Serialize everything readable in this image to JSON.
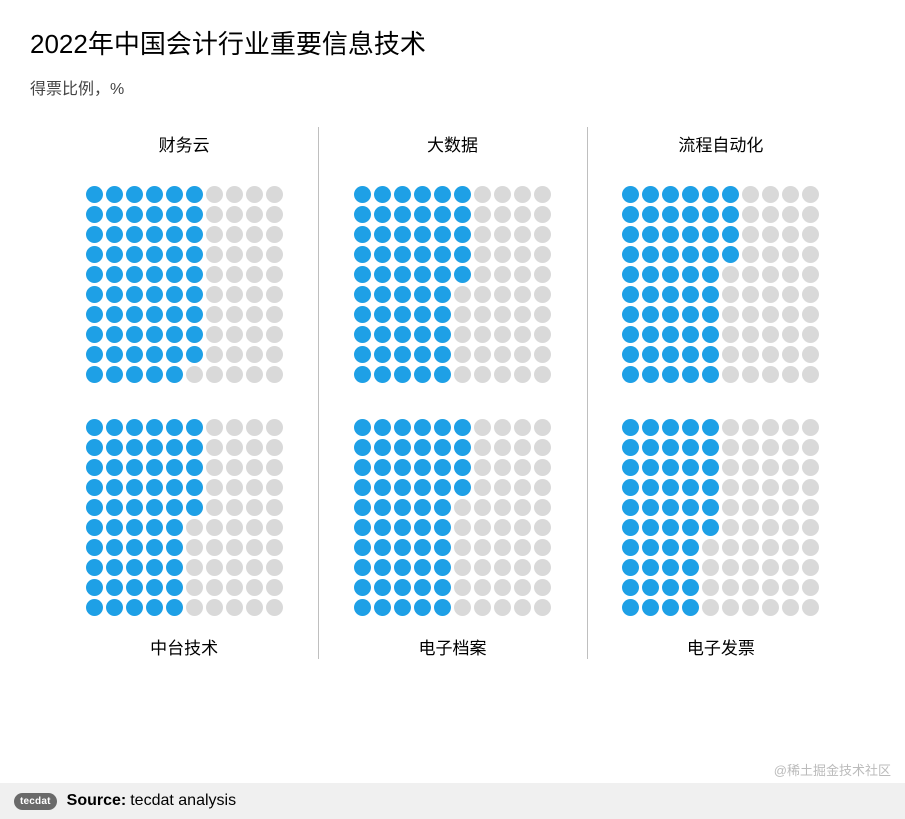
{
  "title": "2022年中国会计行业重要信息技术",
  "subtitle": "得票比例，%",
  "colors": {
    "filled": "#1ea0e6",
    "empty": "#d9d9d9",
    "divider": "#bfbfbf",
    "background": "#ffffff",
    "footer_bg": "#f0f0f0",
    "text": "#000000",
    "watermark": "#bbbbbb"
  },
  "waffle": {
    "rows": 10,
    "cols": 10,
    "dot_size": 17,
    "gap": 3
  },
  "panels": [
    {
      "label": "财务云",
      "value": 59,
      "label_pos": "top"
    },
    {
      "label": "大数据",
      "value": 55,
      "label_pos": "top"
    },
    {
      "label": "流程自动化",
      "value": 54,
      "label_pos": "top"
    },
    {
      "label": "中台技术",
      "value": 55,
      "label_pos": "bottom"
    },
    {
      "label": "电子档案",
      "value": 54,
      "label_pos": "bottom"
    },
    {
      "label": "电子发票",
      "value": 46,
      "label_pos": "bottom"
    }
  ],
  "footer": {
    "brand": "tecdat",
    "source_label": "Source:",
    "source_text": "tecdat analysis"
  },
  "watermark": "@稀土掘金技术社区"
}
